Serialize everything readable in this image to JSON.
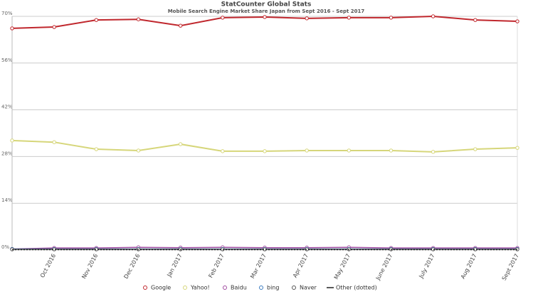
{
  "chart_data": {
    "type": "line",
    "title": "StatCounter Global Stats",
    "subtitle": "Mobile Search Engine Market Share Japan from Sept 2016 - Sept 2017",
    "categories": [
      null,
      "Oct 2016",
      "Nov 2016",
      "Dec 2016",
      "Jan 2017",
      "Feb 2017",
      "Mar 2017",
      "Apr 2017",
      "May 2017",
      "June 2017",
      "July 2017",
      "Aug 2017",
      "Sept 2017"
    ],
    "ylim": [
      0,
      70
    ],
    "yticks": [
      {
        "value": 0,
        "label": "0%"
      },
      {
        "value": 14,
        "label": "14%"
      },
      {
        "value": 28,
        "label": "28%"
      },
      {
        "value": 42,
        "label": "42%"
      },
      {
        "value": 56,
        "label": "56%"
      },
      {
        "value": 70,
        "label": "70%"
      }
    ],
    "grid": true,
    "legend": "bottom",
    "series": [
      {
        "name": "Google",
        "color": "#c0272d",
        "values": [
          66.4,
          66.8,
          68.9,
          69.1,
          67.2,
          69.6,
          69.8,
          69.4,
          69.6,
          69.6,
          70.0,
          68.9,
          68.5
        ]
      },
      {
        "name": "Yahoo!",
        "color": "#d6d67a",
        "values": [
          32.8,
          32.3,
          30.2,
          29.8,
          31.7,
          29.6,
          29.6,
          29.8,
          29.8,
          29.8,
          29.4,
          30.2,
          30.6
        ]
      },
      {
        "name": "Baidu",
        "color": "#a04aa0",
        "values": [
          0.3,
          0.6,
          0.6,
          0.8,
          0.7,
          0.8,
          0.7,
          0.7,
          0.8,
          0.6,
          0.6,
          0.6,
          0.6
        ]
      },
      {
        "name": "bing",
        "color": "#3a7bbf",
        "values": [
          0.3,
          0.3,
          0.3,
          0.3,
          0.3,
          0.3,
          0.3,
          0.3,
          0.3,
          0.3,
          0.3,
          0.3,
          0.3
        ]
      },
      {
        "name": "Naver",
        "color": "#555555",
        "values": [
          0.2,
          0.2,
          0.2,
          0.2,
          0.2,
          0.2,
          0.2,
          0.2,
          0.2,
          0.2,
          0.2,
          0.2,
          0.2
        ]
      },
      {
        "name": "Other (dotted)",
        "color": "#222222",
        "values": [
          0.1,
          0.1,
          0.1,
          0.1,
          0.1,
          0.1,
          0.1,
          0.1,
          0.1,
          0.1,
          0.1,
          0.1,
          0.1
        ]
      }
    ]
  }
}
